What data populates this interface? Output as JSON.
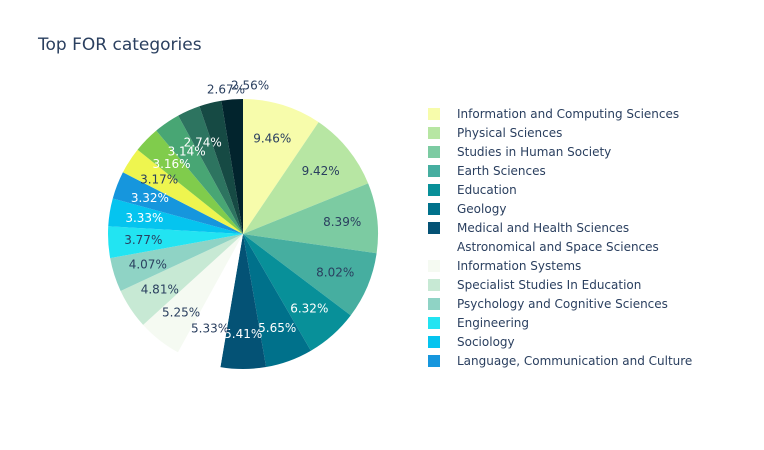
{
  "chart_data": {
    "type": "pie",
    "title": "Top FOR categories",
    "legend_position": "right",
    "slices": [
      {
        "label": "Information and Computing Sciences",
        "value": 9.46,
        "text": "9.46%",
        "color": "#f7fcab",
        "text_color": "#2a3f5f",
        "text_inside": true
      },
      {
        "label": "Physical Sciences",
        "value": 9.42,
        "text": "9.42%",
        "color": "#b7e6a3",
        "text_color": "#2a3f5f",
        "text_inside": true
      },
      {
        "label": "Studies in Human Society",
        "value": 8.39,
        "text": "8.39%",
        "color": "#7ccba2",
        "text_color": "#2a3f5f",
        "text_inside": true
      },
      {
        "label": "Earth Sciences",
        "value": 8.02,
        "text": "8.02%",
        "color": "#46aea0",
        "text_color": "#2a3f5f",
        "text_inside": true
      },
      {
        "label": "Education",
        "value": 6.32,
        "text": "6.32%",
        "color": "#089099",
        "text_color": "#ffffff",
        "text_inside": true
      },
      {
        "label": "Geology",
        "value": 5.65,
        "text": "5.65%",
        "color": "#00718b",
        "text_color": "#ffffff",
        "text_inside": true
      },
      {
        "label": "Medical and Health Sciences",
        "value": 5.41,
        "text": "5.41%",
        "color": "#045275",
        "text_color": "#ffffff",
        "text_inside": true
      },
      {
        "label": "Astronomical and Space Sciences",
        "value": 5.33,
        "text": "5.33%",
        "color": "#ffffff",
        "text_color": "#2a3f5f",
        "text_inside": true
      },
      {
        "label": "Information Systems",
        "value": 5.25,
        "text": "5.25%",
        "color": "#f5faf2",
        "text_color": "#2a3f5f",
        "text_inside": true
      },
      {
        "label": "Specialist Studies In Education",
        "value": 4.81,
        "text": "4.81%",
        "color": "#c7e9d4",
        "text_color": "#2a3f5f",
        "text_inside": true
      },
      {
        "label": "Psychology and Cognitive Sciences",
        "value": 4.07,
        "text": "4.07%",
        "color": "#8fd3c5",
        "text_color": "#2a3f5f",
        "text_inside": true
      },
      {
        "label": "Engineering",
        "value": 3.77,
        "text": "3.77%",
        "color": "#22e4f2",
        "text_color": "#2a3f5f",
        "text_inside": true
      },
      {
        "label": "Sociology",
        "value": 3.33,
        "text": "3.33%",
        "color": "#05c4ef",
        "text_color": "#ffffff",
        "text_inside": true
      },
      {
        "label": "Language, Communication and Culture",
        "value": 3.32,
        "text": "3.32%",
        "color": "#1696dd",
        "text_color": "#ffffff",
        "text_inside": true
      },
      {
        "label": "",
        "value": 3.17,
        "text": "3.17%",
        "color": "#eef54f",
        "text_color": "#2a3f5f",
        "text_inside": true
      },
      {
        "label": "",
        "value": 3.16,
        "text": "3.16%",
        "color": "#80cc4c",
        "text_color": "#ffffff",
        "text_inside": true
      },
      {
        "label": "",
        "value": 3.14,
        "text": "3.14%",
        "color": "#48a674",
        "text_color": "#ffffff",
        "text_inside": true
      },
      {
        "label": "",
        "value": 2.74,
        "text": "2.74%",
        "color": "#2d7460",
        "text_color": "#ffffff",
        "text_inside": true
      },
      {
        "label": "",
        "value": 2.67,
        "text": "2.67%",
        "color": "#164a44",
        "text_color": "#2a3f5f",
        "text_inside": false
      },
      {
        "label": "",
        "value": 2.56,
        "text": "2.56%",
        "color": "#02242d",
        "text_color": "#2a3f5f",
        "text_inside": false
      }
    ],
    "legend_count": 14
  }
}
